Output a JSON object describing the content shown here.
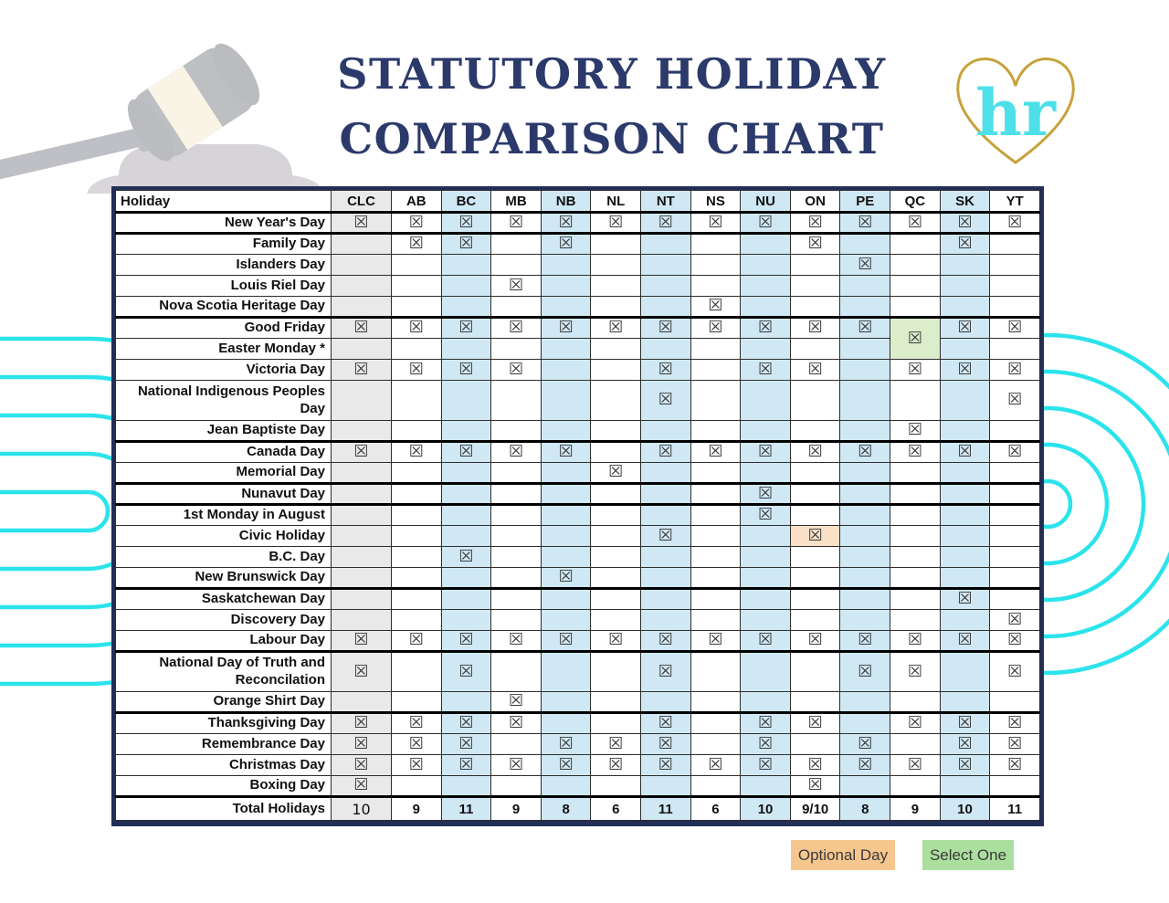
{
  "title": {
    "line1": "STATUTORY HOLIDAY",
    "line2": "COMPARISON CHART"
  },
  "logo": {
    "text": "hr"
  },
  "colors": {
    "title_navy": "#2b3a6b",
    "table_border_navy": "#232e57",
    "column_gray": "#e9e9e9",
    "column_blue": "#cfe8f4",
    "select_one_cell_green": "#dcedcb",
    "optional_cell_orange": "#f9e0c7",
    "legend_orange": "#f6c68f",
    "legend_green": "#abdf9e",
    "decor_cyan": "#2be3eb",
    "logo_gold": "#c7a23b",
    "logo_cyan": "#4ee0e9"
  },
  "table": {
    "header_label": "Holiday",
    "columns": [
      "CLC",
      "AB",
      "BC",
      "MB",
      "NB",
      "NL",
      "NT",
      "NS",
      "NU",
      "ON",
      "PE",
      "QC",
      "SK",
      "YT"
    ],
    "gray_columns": [
      "CLC"
    ],
    "blue_columns": [
      "BC",
      "NB",
      "NT",
      "NU",
      "PE",
      "SK"
    ],
    "checkbox_glyph": "☒",
    "merged_cell": {
      "column": "QC",
      "start_row": "Good Friday",
      "end_row": "Easter Monday *",
      "checked": true,
      "meaning": "Select One"
    },
    "rows": [
      {
        "label": "New Year's Day",
        "checks": [
          "CLC",
          "AB",
          "BC",
          "MB",
          "NB",
          "NL",
          "NT",
          "NS",
          "NU",
          "ON",
          "PE",
          "QC",
          "SK",
          "YT"
        ],
        "thick_below": true
      },
      {
        "label": "Family Day",
        "checks": [
          "AB",
          "BC",
          "NB",
          "ON",
          "SK"
        ]
      },
      {
        "label": "Islanders Day",
        "checks": [
          "PE"
        ]
      },
      {
        "label": "Louis Riel Day",
        "checks": [
          "MB"
        ]
      },
      {
        "label": "Nova Scotia Heritage Day",
        "checks": [
          "NS"
        ],
        "thick_below": true
      },
      {
        "label": "Good Friday",
        "checks": [
          "CLC",
          "AB",
          "BC",
          "MB",
          "NB",
          "NL",
          "NT",
          "NS",
          "NU",
          "ON",
          "PE",
          "SK",
          "YT"
        ],
        "qc_merge_start": true
      },
      {
        "label": "Easter Monday *",
        "checks": [],
        "qc_merged": true
      },
      {
        "label": "Victoria Day",
        "checks": [
          "CLC",
          "AB",
          "BC",
          "MB",
          "NT",
          "NU",
          "ON",
          "QC",
          "SK",
          "YT"
        ]
      },
      {
        "label": "National Indigenous Peoples Day",
        "checks": [
          "NT",
          "YT"
        ],
        "tall": true
      },
      {
        "label": "Jean Baptiste Day",
        "checks": [
          "QC"
        ],
        "thick_below": true
      },
      {
        "label": "Canada Day",
        "checks": [
          "CLC",
          "AB",
          "BC",
          "MB",
          "NB",
          "NT",
          "NS",
          "NU",
          "ON",
          "PE",
          "QC",
          "SK",
          "YT"
        ]
      },
      {
        "label": "Memorial Day",
        "checks": [
          "NL"
        ],
        "thick_below": true
      },
      {
        "label": "Nunavut Day",
        "checks": [
          "NU"
        ],
        "thick_below": true
      },
      {
        "label": "1st Monday in August",
        "checks": [
          "NU"
        ]
      },
      {
        "label": "Civic Holiday",
        "checks": [
          "NT",
          "ON"
        ],
        "orange_cells": [
          "ON"
        ]
      },
      {
        "label": "B.C. Day",
        "checks": [
          "BC"
        ]
      },
      {
        "label": "New Brunswick Day",
        "checks": [
          "NB"
        ],
        "thick_below": true
      },
      {
        "label": "Saskatchewan Day",
        "checks": [
          "SK"
        ]
      },
      {
        "label": "Discovery Day",
        "checks": [
          "YT"
        ]
      },
      {
        "label": "Labour Day",
        "checks": [
          "CLC",
          "AB",
          "BC",
          "MB",
          "NB",
          "NL",
          "NT",
          "NS",
          "NU",
          "ON",
          "PE",
          "QC",
          "SK",
          "YT"
        ],
        "thick_below": true
      },
      {
        "label": "National Day of Truth and Reconcilation",
        "checks": [
          "CLC",
          "BC",
          "NT",
          "PE",
          "QC",
          "YT"
        ],
        "tall": true
      },
      {
        "label": "Orange Shirt Day",
        "checks": [
          "MB"
        ],
        "thick_below": true
      },
      {
        "label": "Thanksgiving Day",
        "checks": [
          "CLC",
          "AB",
          "BC",
          "MB",
          "NT",
          "NU",
          "ON",
          "QC",
          "SK",
          "YT"
        ]
      },
      {
        "label": "Remembrance Day",
        "checks": [
          "CLC",
          "AB",
          "BC",
          "NB",
          "NL",
          "NT",
          "NU",
          "PE",
          "SK",
          "YT"
        ]
      },
      {
        "label": "Christmas Day",
        "checks": [
          "CLC",
          "AB",
          "BC",
          "MB",
          "NB",
          "NL",
          "NT",
          "NS",
          "NU",
          "ON",
          "PE",
          "QC",
          "SK",
          "YT"
        ]
      },
      {
        "label": "Boxing Day",
        "checks": [
          "CLC",
          "ON"
        ],
        "thick_below": true
      }
    ],
    "totals": {
      "label": "Total Holidays",
      "values": [
        "10",
        "9",
        "11",
        "9",
        "8",
        "6",
        "11",
        "6",
        "10",
        "9/10",
        "8",
        "9",
        "10",
        "11"
      ]
    }
  },
  "legend": {
    "optional": {
      "label": "Optional Day"
    },
    "select": {
      "label": "Select One"
    }
  }
}
